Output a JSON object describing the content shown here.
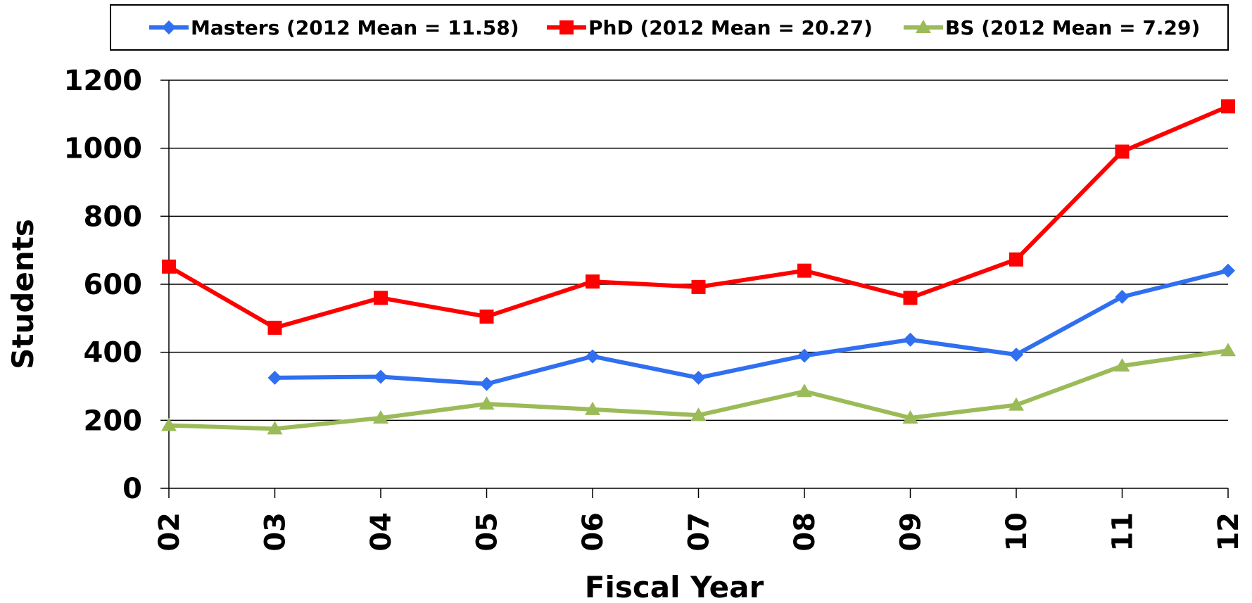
{
  "chart_data": {
    "type": "line",
    "title": "",
    "xlabel": "Fiscal Year",
    "ylabel": "Students",
    "categories": [
      "02",
      "03",
      "04",
      "05",
      "06",
      "07",
      "08",
      "09",
      "10",
      "11",
      "12"
    ],
    "ylim": [
      0,
      1200
    ],
    "yticks": [
      0,
      200,
      400,
      600,
      800,
      1000,
      1200
    ],
    "grid": true,
    "legend_position": "top",
    "series": [
      {
        "name": "Masters (2012 Mean = 11.58)",
        "color": "#2F6FF0",
        "marker": "diamond",
        "values": [
          null,
          325,
          328,
          307,
          388,
          325,
          390,
          437,
          393,
          563,
          640
        ]
      },
      {
        "name": "PhD (2012 Mean = 20.27)",
        "color": "#FF0000",
        "marker": "square",
        "values": [
          652,
          472,
          560,
          505,
          608,
          592,
          640,
          560,
          673,
          990,
          1123
        ]
      },
      {
        "name": "BS (2012 Mean = 7.29)",
        "color": "#9BBB59",
        "marker": "triangle",
        "values": [
          185,
          175,
          207,
          248,
          232,
          215,
          285,
          207,
          245,
          360,
          405
        ]
      }
    ]
  }
}
